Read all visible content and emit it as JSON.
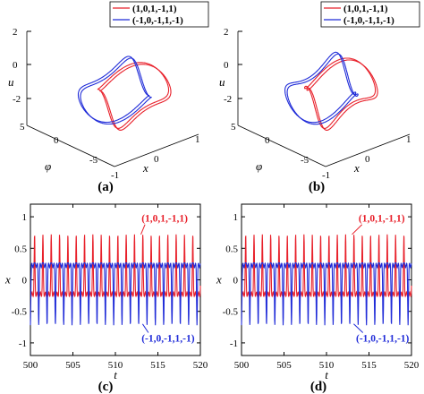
{
  "chart_data": [
    {
      "panel": "(a)",
      "type": "line",
      "x_axis": {
        "label": "x",
        "ticks": [
          "-1",
          "0",
          "1"
        ],
        "range": [
          -1,
          1
        ]
      },
      "y_axis": {
        "label": "φ",
        "ticks": [
          "-5",
          "0",
          "5"
        ],
        "range": [
          -5,
          5
        ]
      },
      "z_axis": {
        "label": "u",
        "ticks": [
          "2",
          "0",
          "-2"
        ],
        "range": [
          -2,
          2
        ]
      },
      "legend": {
        "placement": "top-right",
        "entries": [
          "(1,0,1,-1,1)",
          "(-1,0,-1,1,-1)"
        ]
      },
      "series": [
        {
          "name": "(1,0,1,-1,1)",
          "color": "#e8202a"
        },
        {
          "name": "(-1,0,-1,1,-1)",
          "color": "#1f2bd8"
        }
      ],
      "grid": false
    },
    {
      "panel": "(b)",
      "type": "line",
      "x_axis": {
        "label": "x",
        "ticks": [
          "-1",
          "0",
          "1"
        ],
        "range": [
          -1,
          1
        ]
      },
      "y_axis": {
        "label": "φ",
        "ticks": [
          "-5",
          "0",
          "5"
        ],
        "range": [
          -5,
          5
        ]
      },
      "z_axis": {
        "label": "u",
        "ticks": [
          "2",
          "0",
          "-2"
        ],
        "range": [
          -2,
          2
        ]
      },
      "legend": {
        "placement": "top-right",
        "entries": [
          "(1,0,1,-1,1)",
          "(-1,0,-1,1,-1)"
        ]
      },
      "series": [
        {
          "name": "(1,0,1,-1,1)",
          "color": "#e8202a"
        },
        {
          "name": "(-1,0,-1,1,-1)",
          "color": "#1f2bd8"
        }
      ],
      "grid": false
    },
    {
      "panel": "(c)",
      "type": "line",
      "xlabel": "t",
      "ylabel": "x",
      "xlim": [
        500,
        520
      ],
      "ylim": [
        -1.2,
        1.2
      ],
      "x_ticks": [
        "500",
        "505",
        "510",
        "515",
        "520"
      ],
      "y_ticks": [
        "1",
        "0.5",
        "0",
        "-0.5",
        "-1"
      ],
      "period": 0.98,
      "annotations": [
        {
          "text": "(1,0,1,-1,1)",
          "color": "#e8202a",
          "x": 515.8,
          "y": 0.92,
          "arrow_to": [
            513,
            0.72
          ]
        },
        {
          "text": "(-1,0,-1,1,-1)",
          "color": "#1f2bd8",
          "x": 516.2,
          "y": -0.98,
          "arrow_to": [
            513.2,
            -0.7
          ]
        }
      ],
      "series": [
        {
          "name": "(1,0,1,-1,1)",
          "color": "#e8202a",
          "sign": 1,
          "peak": 0.72,
          "trough": -0.27
        },
        {
          "name": "(-1,0,-1,1,-1)",
          "color": "#1f2bd8",
          "sign": -1,
          "peak": 0.72,
          "trough": -0.27
        }
      ],
      "grid": false
    },
    {
      "panel": "(d)",
      "type": "line",
      "xlabel": "t",
      "ylabel": "x",
      "xlim": [
        500,
        520
      ],
      "ylim": [
        -1.2,
        1.2
      ],
      "x_ticks": [
        "500",
        "505",
        "510",
        "515",
        "520"
      ],
      "y_ticks": [
        "1",
        "0.5",
        "0",
        "-0.5",
        "-1"
      ],
      "period": 0.98,
      "annotations": [
        {
          "text": "(1,0,1,-1,1)",
          "color": "#e8202a",
          "x": 516.5,
          "y": 0.92,
          "arrow_to": [
            513,
            0.72
          ]
        },
        {
          "text": "(-1,0,-1,1,-1)",
          "color": "#1f2bd8",
          "x": 516.6,
          "y": -0.98,
          "arrow_to": [
            513.2,
            -0.7
          ]
        }
      ],
      "series": [
        {
          "name": "(1,0,1,-1,1)",
          "color": "#e8202a",
          "sign": 1,
          "peak": 0.72,
          "trough": -0.27
        },
        {
          "name": "(-1,0,-1,1,-1)",
          "color": "#1f2bd8",
          "sign": -1,
          "peak": 0.72,
          "trough": -0.27
        }
      ],
      "grid": false
    }
  ]
}
